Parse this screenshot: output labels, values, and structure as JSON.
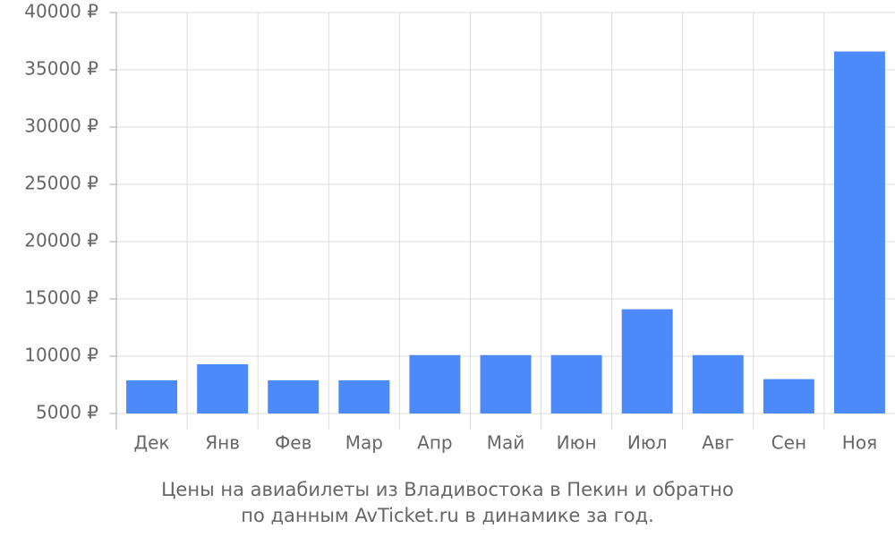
{
  "chart_data": {
    "type": "bar",
    "title": [
      "Цены на авиабилеты из Владивостока в Пекин и обратно",
      "по данным AvTicket.ru в динамике за год."
    ],
    "categories": [
      "Дек",
      "Янв",
      "Фев",
      "Мар",
      "Апр",
      "Май",
      "Июн",
      "Июл",
      "Авг",
      "Сен",
      "Ноя"
    ],
    "values": [
      7900,
      9300,
      7900,
      7900,
      10100,
      10100,
      10100,
      14100,
      10100,
      8000,
      36600
    ],
    "color": "#4d8af9",
    "ylim": [
      5000,
      40000
    ],
    "yticks": [
      {
        "value": 5000,
        "label": "5000 ₽"
      },
      {
        "value": 10000,
        "label": "10000 ₽"
      },
      {
        "value": 15000,
        "label": "15000 ₽"
      },
      {
        "value": 20000,
        "label": "20000 ₽"
      },
      {
        "value": 25000,
        "label": "25000 ₽"
      },
      {
        "value": 30000,
        "label": "30000 ₽"
      },
      {
        "value": 35000,
        "label": "35000 ₽"
      },
      {
        "value": 40000,
        "label": "40000 ₽"
      }
    ],
    "grid": true
  }
}
